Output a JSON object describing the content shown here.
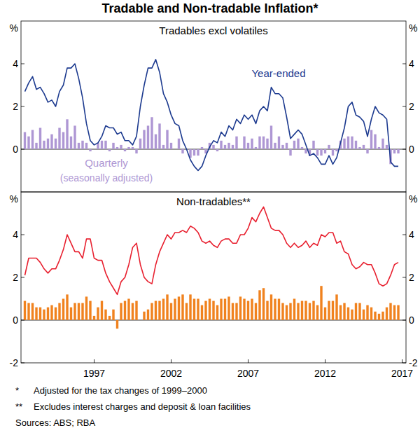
{
  "title": "Tradable and Non-tradable Inflation*",
  "chart_data": [
    {
      "type": "line",
      "title": "Tradables excl volatiles",
      "ylabel": "%",
      "x": [
        1992.5,
        1992.75,
        1993,
        1993.25,
        1993.5,
        1993.75,
        1994,
        1994.25,
        1994.5,
        1994.75,
        1995,
        1995.25,
        1995.5,
        1995.75,
        1996,
        1996.25,
        1996.5,
        1996.75,
        1997,
        1997.25,
        1997.5,
        1997.75,
        1998,
        1998.25,
        1998.5,
        1998.75,
        1999,
        1999.25,
        1999.5,
        1999.75,
        2000,
        2000.25,
        2000.5,
        2000.75,
        2001,
        2001.25,
        2001.5,
        2001.75,
        2002,
        2002.25,
        2002.5,
        2002.75,
        2003,
        2003.25,
        2003.5,
        2003.75,
        2004,
        2004.25,
        2004.5,
        2004.75,
        2005,
        2005.25,
        2005.5,
        2005.75,
        2006,
        2006.25,
        2006.5,
        2006.75,
        2007,
        2007.25,
        2007.5,
        2007.75,
        2008,
        2008.25,
        2008.5,
        2008.75,
        2009,
        2009.25,
        2009.5,
        2009.75,
        2010,
        2010.25,
        2010.5,
        2010.75,
        2011,
        2011.25,
        2011.5,
        2011.75,
        2012,
        2012.25,
        2012.5,
        2012.75,
        2013,
        2013.25,
        2013.5,
        2013.75,
        2014,
        2014.25,
        2014.5,
        2014.75,
        2015,
        2015.25,
        2015.5,
        2015.75,
        2016,
        2016.25,
        2016.5,
        2016.75
      ],
      "xlim": [
        1992.25,
        2017.25
      ],
      "ylim": [
        -2,
        6
      ],
      "yticks": [
        0,
        2,
        4
      ],
      "grid": false,
      "tick_labels": "y",
      "series": [
        {
          "name": "Year-ended",
          "type": "line",
          "color": "#1c3a8f",
          "values": [
            2.7,
            3.1,
            3.4,
            2.8,
            2.9,
            2.6,
            2.2,
            2.3,
            2.0,
            2.7,
            3.0,
            3.8,
            3.8,
            4.0,
            3.3,
            2.4,
            1.2,
            0.4,
            0.2,
            0.3,
            0.6,
            1.1,
            1.0,
            1.0,
            0.7,
            0.8,
            0.4,
            0.4,
            0.2,
            0.6,
            2.0,
            3.0,
            3.8,
            3.8,
            4.2,
            3.6,
            2.6,
            2.2,
            1.6,
            1.2,
            1.1,
            0.4,
            0.0,
            -0.5,
            -0.8,
            -1.0,
            -0.8,
            -0.3,
            0.1,
            0.4,
            0.3,
            0.8,
            0.6,
            1.1,
            0.9,
            1.4,
            1.2,
            1.6,
            1.4,
            1.6,
            1.2,
            1.8,
            2.0,
            1.8,
            2.9,
            2.6,
            2.6,
            2.4,
            1.5,
            0.5,
            0.7,
            0.9,
            0.7,
            0.2,
            -0.3,
            -0.2,
            -0.4,
            -0.7,
            -0.7,
            -0.3,
            -0.7,
            -0.4,
            0.3,
            1.0,
            2.0,
            2.2,
            1.6,
            1.5,
            1.3,
            0.6,
            1.4,
            2.0,
            1.7,
            1.6,
            1.4,
            -0.6,
            -0.8,
            -0.8
          ]
        },
        {
          "name": "Quarterly (seasonally adjusted)",
          "type": "bar",
          "color": "#ae97d4",
          "values": [
            0.8,
            0.6,
            0.9,
            0.3,
            1.0,
            0.4,
            0.5,
            0.7,
            0.5,
            1.0,
            0.8,
            1.4,
            0.6,
            1.1,
            0.3,
            0.4,
            0.3,
            -0.1,
            0.0,
            0.3,
            0.4,
            0.4,
            -0.1,
            0.3,
            0.1,
            0.2,
            -0.1,
            0.1,
            0.1,
            -0.2,
            0.5,
            0.9,
            1.1,
            1.5,
            0.7,
            1.2,
            0.2,
            0.9,
            0.3,
            0.0,
            0.5,
            -0.2,
            0.0,
            -0.4,
            -0.3,
            -0.3,
            0.1,
            -0.2,
            0.3,
            0.2,
            -0.1,
            0.4,
            0.2,
            0.3,
            0.2,
            0.6,
            0.0,
            0.6,
            0.3,
            0.5,
            0.1,
            0.6,
            0.6,
            0.5,
            1.1,
            0.3,
            0.6,
            0.2,
            0.3,
            -0.3,
            0.4,
            0.5,
            0.1,
            -0.2,
            -0.3,
            0.4,
            -0.3,
            -0.3,
            -0.2,
            0.2,
            -0.3,
            -0.1,
            0.4,
            0.5,
            0.6,
            0.6,
            0.4,
            0.1,
            0.2,
            -0.2,
            0.9,
            0.7,
            0.1,
            0.5,
            0.2,
            -0.7,
            -0.2,
            -0.2
          ]
        }
      ]
    },
    {
      "type": "line",
      "title": "Non-tradables**",
      "ylabel": "%",
      "x": [
        1992.5,
        1992.75,
        1993,
        1993.25,
        1993.5,
        1993.75,
        1994,
        1994.25,
        1994.5,
        1994.75,
        1995,
        1995.25,
        1995.5,
        1995.75,
        1996,
        1996.25,
        1996.5,
        1996.75,
        1997,
        1997.25,
        1997.5,
        1997.75,
        1998,
        1998.25,
        1998.5,
        1998.75,
        1999,
        1999.25,
        1999.5,
        1999.75,
        2000,
        2000.25,
        2000.5,
        2000.75,
        2001,
        2001.25,
        2001.5,
        2001.75,
        2002,
        2002.25,
        2002.5,
        2002.75,
        2003,
        2003.25,
        2003.5,
        2003.75,
        2004,
        2004.25,
        2004.5,
        2004.75,
        2005,
        2005.25,
        2005.5,
        2005.75,
        2006,
        2006.25,
        2006.5,
        2006.75,
        2007,
        2007.25,
        2007.5,
        2007.75,
        2008,
        2008.25,
        2008.5,
        2008.75,
        2009,
        2009.25,
        2009.5,
        2009.75,
        2010,
        2010.25,
        2010.5,
        2010.75,
        2011,
        2011.25,
        2011.5,
        2011.75,
        2012,
        2012.25,
        2012.5,
        2012.75,
        2013,
        2013.25,
        2013.5,
        2013.75,
        2014,
        2014.25,
        2014.5,
        2014.75,
        2015,
        2015.25,
        2015.5,
        2015.75,
        2016,
        2016.25,
        2016.5,
        2016.75
      ],
      "xlim": [
        1992.25,
        2017.25
      ],
      "xticks": [
        1997,
        2002,
        2007,
        2012,
        2017
      ],
      "ylim": [
        -2,
        6
      ],
      "yticks": [
        -2,
        0,
        2,
        4
      ],
      "grid": false,
      "series": [
        {
          "type": "line",
          "color": "#e8202f",
          "values": [
            2.1,
            2.9,
            2.9,
            2.9,
            2.7,
            2.4,
            2.2,
            2.4,
            2.4,
            2.8,
            3.3,
            4.0,
            3.6,
            3.2,
            3.2,
            2.9,
            3.8,
            3.8,
            2.9,
            2.8,
            2.8,
            2.2,
            1.8,
            1.5,
            1.2,
            1.8,
            2.0,
            2.6,
            3.4,
            3.6,
            2.6,
            2.0,
            1.8,
            1.7,
            2.6,
            3.2,
            3.6,
            4.0,
            3.8,
            4.1,
            4.1,
            4.2,
            4.1,
            4.4,
            4.3,
            4.1,
            3.7,
            3.6,
            3.7,
            3.5,
            3.4,
            3.7,
            3.8,
            3.8,
            3.6,
            3.6,
            4.0,
            4.0,
            4.3,
            4.8,
            4.6,
            5.0,
            5.3,
            4.8,
            4.3,
            4.2,
            4.2,
            4.0,
            3.6,
            3.4,
            3.6,
            3.4,
            3.5,
            3.7,
            3.4,
            3.6,
            3.5,
            4.0,
            3.9,
            4.1,
            4.1,
            3.6,
            3.7,
            3.2,
            3.1,
            2.6,
            2.4,
            2.5,
            2.7,
            2.6,
            2.6,
            2.2,
            1.7,
            1.6,
            1.7,
            2.1,
            2.6,
            2.7
          ]
        },
        {
          "type": "bar",
          "color": "#f0821e",
          "values": [
            0.9,
            0.8,
            0.8,
            0.6,
            0.6,
            0.5,
            0.6,
            0.7,
            0.6,
            0.8,
            1.0,
            1.2,
            0.6,
            0.8,
            0.8,
            0.8,
            1.1,
            0.9,
            0.2,
            0.6,
            0.9,
            0.5,
            0.2,
            0.5,
            -0.4,
            0.8,
            0.9,
            1.0,
            0.8,
            0.9,
            0.0,
            0.4,
            0.5,
            0.8,
            0.9,
            0.9,
            1.0,
            1.2,
            0.8,
            1.0,
            1.1,
            1.2,
            0.8,
            1.2,
            1.0,
            1.0,
            0.7,
            0.9,
            1.0,
            0.9,
            0.7,
            1.0,
            1.0,
            1.1,
            0.8,
            0.8,
            1.1,
            1.0,
            0.9,
            1.0,
            0.8,
            1.4,
            1.5,
            0.9,
            1.2,
            1.0,
            1.0,
            0.8,
            0.7,
            0.8,
            1.0,
            0.8,
            0.9,
            0.9,
            0.8,
            0.9,
            0.7,
            1.6,
            0.6,
            0.9,
            0.9,
            1.2,
            0.7,
            0.8,
            0.6,
            0.5,
            0.8,
            0.8,
            0.5,
            0.7,
            0.6,
            0.4,
            0.3,
            0.4,
            0.6,
            0.8,
            0.7,
            0.7
          ]
        }
      ]
    }
  ],
  "footnotes": [
    {
      "symbol": "*",
      "text": "Adjusted for the tax changes of 1999–2000"
    },
    {
      "symbol": "**",
      "text": "Excludes interest charges and deposit & loan facilities"
    }
  ],
  "source": "Sources: ABS; RBA"
}
